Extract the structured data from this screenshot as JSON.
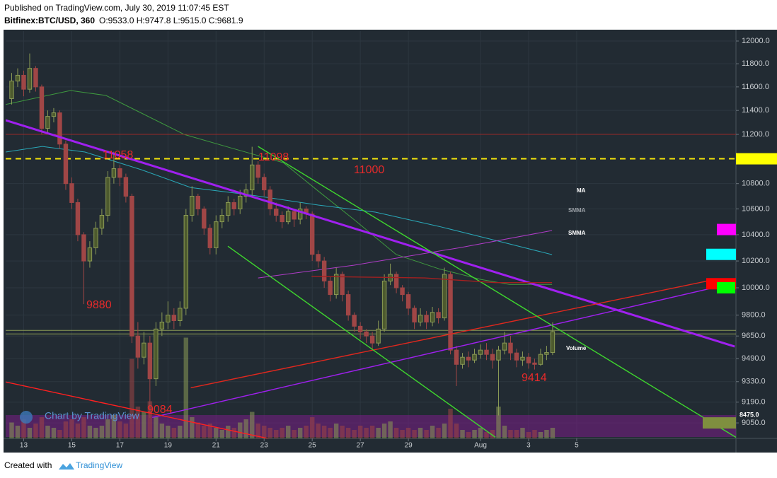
{
  "header": {
    "published": "Published on TradingView.com, July 30, 2019 11:07:45 EST",
    "symbol": "Bitfinex:BTC/USD, 360",
    "ohlc": "O:9533.0 H:9747.8 L:9515.0 C:9681.9"
  },
  "footer": {
    "created": "Created with",
    "brand": "TradingView"
  },
  "watermark": "Chart by TradingView",
  "chart_data": {
    "type": "candlestick",
    "log_scale": true,
    "grid": true,
    "up_color": "#8a9a55",
    "down_color": "#a04646",
    "xlim": [
      -1,
      120.5
    ],
    "ylim": [
      8947,
      12088
    ],
    "xticks": [
      {
        "value": 2,
        "label": "13"
      },
      {
        "value": 10,
        "label": "15"
      },
      {
        "value": 18,
        "label": "17"
      },
      {
        "value": 26,
        "label": "19"
      },
      {
        "value": 34,
        "label": "21"
      },
      {
        "value": 42,
        "label": "23"
      },
      {
        "value": 50,
        "label": "25"
      },
      {
        "value": 58,
        "label": "27"
      },
      {
        "value": 66,
        "label": "29"
      },
      {
        "value": 78,
        "label": "Aug"
      },
      {
        "value": 86,
        "label": "3"
      },
      {
        "value": 94,
        "label": "5"
      }
    ],
    "yticks": [
      {
        "value": 12000,
        "label": "12000.0"
      },
      {
        "value": 11800,
        "label": "11800.0"
      },
      {
        "value": 11600,
        "label": "11600.0"
      },
      {
        "value": 11400,
        "label": "11400.0"
      },
      {
        "value": 11200,
        "label": "11200.0"
      },
      {
        "value": 10800,
        "label": "10800.0"
      },
      {
        "value": 10600,
        "label": "10600.0"
      },
      {
        "value": 10400,
        "label": "10400.0"
      },
      {
        "value": 10200,
        "label": "10200.0"
      },
      {
        "value": 10000,
        "label": "10000.0"
      },
      {
        "value": 9800,
        "label": "9800.0"
      },
      {
        "value": 9650,
        "label": "9650.0"
      },
      {
        "value": 9490,
        "label": "9490.0"
      },
      {
        "value": 9330,
        "label": "9330.0"
      },
      {
        "value": 9190,
        "label": "9190.0"
      },
      {
        "value": 9050,
        "label": "9050.0"
      }
    ],
    "open": [
      11500,
      11650,
      11700,
      11580,
      11760,
      11600,
      11250,
      11350,
      11380,
      11120,
      10800,
      10650,
      10400,
      10200,
      10300,
      10450,
      10550,
      10850,
      10920,
      10850,
      10700,
      9650,
      9500,
      9600,
      9350,
      9700,
      9750,
      9800,
      9760,
      9850,
      10550,
      10700,
      10600,
      10450,
      10300,
      10500,
      10550,
      10650,
      10600,
      10700,
      10750,
      10950,
      10850,
      10750,
      10600,
      10550,
      10500,
      10580,
      10520,
      10600,
      10560,
      10250,
      10200,
      10050,
      9950,
      10100,
      9950,
      9800,
      9720,
      9680,
      9650,
      9600,
      9700,
      10050,
      10100,
      10000,
      9950,
      9850,
      9750,
      9800,
      9750,
      9820,
      9780,
      10100,
      9550,
      9450,
      9500,
      9480,
      9520,
      9550,
      9520,
      9480,
      9550,
      9600,
      9530,
      9480,
      9500,
      9460,
      9450,
      9520,
      9533.0
    ],
    "high": [
      11720,
      11760,
      11740,
      11890,
      11780,
      11620,
      11400,
      11420,
      11400,
      11150,
      10850,
      10680,
      10420,
      10350,
      10500,
      10600,
      10900,
      11058,
      10950,
      10880,
      10720,
      9750,
      9680,
      9650,
      9750,
      9820,
      9900,
      9850,
      9900,
      10600,
      10780,
      10720,
      10620,
      10480,
      10550,
      10600,
      10700,
      10680,
      10750,
      10800,
      11098,
      10980,
      10880,
      10780,
      10650,
      10580,
      10620,
      10600,
      10650,
      10620,
      10580,
      10280,
      10230,
      10080,
      10150,
      10120,
      9980,
      9820,
      9750,
      9700,
      9680,
      9760,
      10100,
      10180,
      10120,
      10020,
      9970,
      9870,
      9850,
      9830,
      9860,
      9850,
      10150,
      10120,
      9580,
      9530,
      9540,
      9560,
      9590,
      9600,
      9560,
      9580,
      9680,
      9650,
      9560,
      9540,
      9530,
      9490,
      9560,
      9580,
      9747.8
    ],
    "low": [
      11450,
      11600,
      11520,
      11550,
      11560,
      11200,
      11200,
      11300,
      11080,
      10750,
      10600,
      10350,
      9880,
      10150,
      10250,
      10400,
      10500,
      10800,
      10780,
      10650,
      9600,
      9420,
      9450,
      9084,
      9300,
      9650,
      9700,
      9700,
      9720,
      9800,
      10500,
      10550,
      10400,
      10250,
      10250,
      10450,
      10500,
      10550,
      10560,
      10650,
      10700,
      10800,
      10700,
      10550,
      10500,
      10450,
      10480,
      10460,
      10480,
      10520,
      10200,
      10150,
      10000,
      9900,
      9920,
      9900,
      9760,
      9680,
      9630,
      9600,
      9560,
      9580,
      9680,
      10020,
      9960,
      9900,
      9800,
      9700,
      9720,
      9700,
      9720,
      9740,
      9760,
      9520,
      9300,
      9420,
      9430,
      9460,
      9490,
      9480,
      9420,
      9100,
      9520,
      9480,
      9430,
      9440,
      9420,
      9414,
      9440,
      9480,
      9515.0
    ],
    "close": [
      11650,
      11700,
      11580,
      11760,
      11600,
      11250,
      11350,
      11380,
      11120,
      10800,
      10650,
      10400,
      10200,
      10300,
      10450,
      10550,
      10850,
      10920,
      10850,
      10700,
      9650,
      9500,
      9600,
      9350,
      9700,
      9750,
      9800,
      9760,
      9850,
      10550,
      10700,
      10600,
      10450,
      10300,
      10500,
      10550,
      10650,
      10600,
      10700,
      10750,
      10950,
      10850,
      10750,
      10600,
      10550,
      10500,
      10580,
      10520,
      10600,
      10560,
      10250,
      10200,
      10050,
      9950,
      10100,
      9950,
      9800,
      9720,
      9680,
      9650,
      9600,
      9700,
      10050,
      10100,
      10000,
      9950,
      9850,
      9750,
      9800,
      9750,
      9820,
      9780,
      10100,
      9550,
      9450,
      9500,
      9480,
      9520,
      9550,
      9520,
      9480,
      9550,
      9600,
      9530,
      9480,
      9500,
      9460,
      9450,
      9520,
      9533.0,
      9681.9
    ],
    "volume": {
      "name": "Volume",
      "lim": [
        0,
        100
      ],
      "values": [
        15,
        12,
        18,
        10,
        14,
        20,
        12,
        10,
        8,
        16,
        18,
        14,
        20,
        12,
        10,
        12,
        18,
        22,
        16,
        14,
        75,
        30,
        25,
        35,
        20,
        14,
        12,
        10,
        12,
        95,
        20,
        15,
        12,
        14,
        10,
        8,
        12,
        10,
        15,
        18,
        25,
        14,
        12,
        10,
        8,
        10,
        12,
        8,
        10,
        12,
        20,
        14,
        12,
        10,
        14,
        12,
        10,
        8,
        12,
        10,
        12,
        10,
        14,
        16,
        10,
        8,
        10,
        8,
        10,
        8,
        12,
        10,
        14,
        28,
        14,
        8,
        6,
        8,
        10,
        6,
        8,
        30,
        12,
        8,
        8,
        10,
        6,
        8,
        6,
        8,
        10
      ]
    },
    "series": [
      {
        "name": "MA",
        "color": "#3f9a3f",
        "x": [
          -1,
          9.8,
          15.7,
          21.6,
          28.7,
          36.9,
          45.2,
          51.0,
          56.9,
          64.0,
          71.1,
          78.1,
          82.8,
          89.9
        ],
        "y": [
          11450,
          11569,
          11527,
          11377,
          11200,
          11083,
          10968,
          10741,
          10519,
          10248,
          10141,
          10062,
          10025,
          10025
        ]
      },
      {
        "name": "SMMA",
        "color": "#2aa8b8",
        "x": [
          -1,
          5.1,
          12.2,
          21.6,
          29.8,
          39.3,
          51.0,
          60.5,
          71.1,
          80.5,
          89.9
        ],
        "y": [
          11055,
          11101,
          11055,
          10911,
          10769,
          10713,
          10630,
          10575,
          10464,
          10356,
          10248
        ]
      },
      {
        "name": "SMMA",
        "color": "#b03cc8",
        "x": [
          41,
          56.9,
          74.6,
          89.9
        ],
        "y": [
          10073,
          10168,
          10301,
          10432
        ]
      }
    ],
    "lines": [
      {
        "color": "#a020f0",
        "style": "thick",
        "x": [
          -1,
          120.3
        ],
        "y": [
          11318,
          9575
        ]
      },
      {
        "color": "#a020f0",
        "style": "thin",
        "x": [
          23.4,
          117.6
        ],
        "y": [
          9087,
          10009
        ]
      },
      {
        "color": "#e0281e",
        "style": "thin",
        "x": [
          29.8,
          117
        ],
        "y": [
          9288,
          10062
        ]
      },
      {
        "color": "#ff2020",
        "style": "thin",
        "x": [
          -1,
          42.8
        ],
        "y": [
          9328,
          8945
        ]
      },
      {
        "color": "#3ed62e",
        "style": "thin",
        "x": [
          41.0,
          120.5
        ],
        "y": [
          11101,
          8954
        ]
      },
      {
        "color": "#3ed62e",
        "style": "thin",
        "x": [
          35.97,
          80.5
        ],
        "y": [
          10312,
          8954
        ]
      },
      {
        "color": "#a52020",
        "style": "thin",
        "x": [
          49.9,
          68.7,
          80.5,
          89.9
        ],
        "y": [
          10085,
          10073,
          10038,
          10038
        ]
      }
    ],
    "hlines": [
      {
        "value": 11200,
        "color": "#9a2a2a",
        "dashed": false
      },
      {
        "value": 11000,
        "color": "#f5e60a",
        "dashed": true
      },
      {
        "value": 9690,
        "color": "#8a9a55",
        "dashed": false
      },
      {
        "value": 9665,
        "color": "#8a9a55",
        "dashed": false
      }
    ],
    "price_markers": [
      {
        "value": 11000,
        "color": "#ffff00"
      },
      {
        "value": 10440,
        "color": "#ff00ff"
      },
      {
        "value": 10250,
        "color": "#00ffff"
      },
      {
        "value": 10030,
        "color": "#ff0000"
      },
      {
        "value": 10000,
        "color": "#00ff00"
      },
      {
        "value": 9050,
        "color": "#7f8f3f"
      }
    ],
    "band_label": "8475.0",
    "annotations": [
      "11058",
      "11098",
      "11000",
      "9880",
      "9084",
      "9414"
    ]
  }
}
